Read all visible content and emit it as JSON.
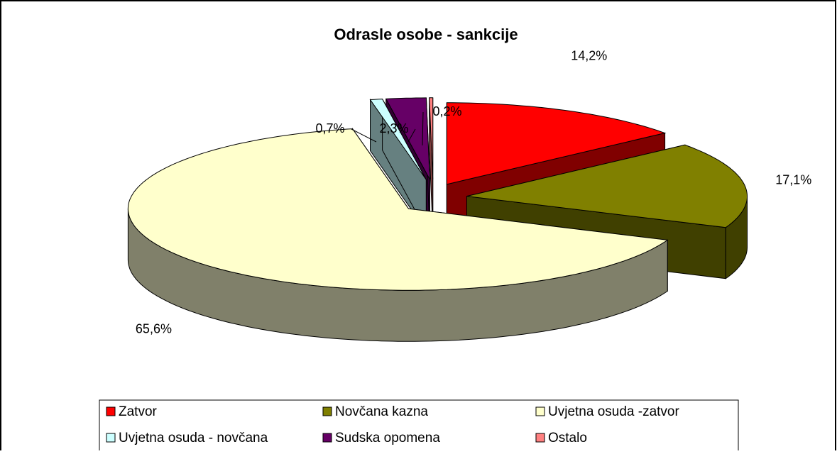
{
  "chart_data": {
    "type": "pie3d",
    "title": "Odrasle osobe - sankcije",
    "categories": [
      "Zatvor",
      "Novčana kazna",
      "Uvjetna osuda -zatvor",
      "Uvjetna osuda - novčana",
      "Sudska opomena",
      "Ostalo"
    ],
    "values": [
      14.2,
      17.1,
      65.6,
      0.7,
      2.3,
      0.2
    ],
    "value_labels": [
      "14,2%",
      "17,1%",
      "65,6%",
      "0,7%",
      "2,3%",
      "0,2%"
    ],
    "colors": [
      "#ff0000",
      "#808000",
      "#ffffcc",
      "#ccffff",
      "#660066",
      "#ff8080"
    ],
    "side_colors": [
      "#800000",
      "#404000",
      "#80806a",
      "#668080",
      "#330033",
      "#804040"
    ],
    "legend": "bottom"
  }
}
